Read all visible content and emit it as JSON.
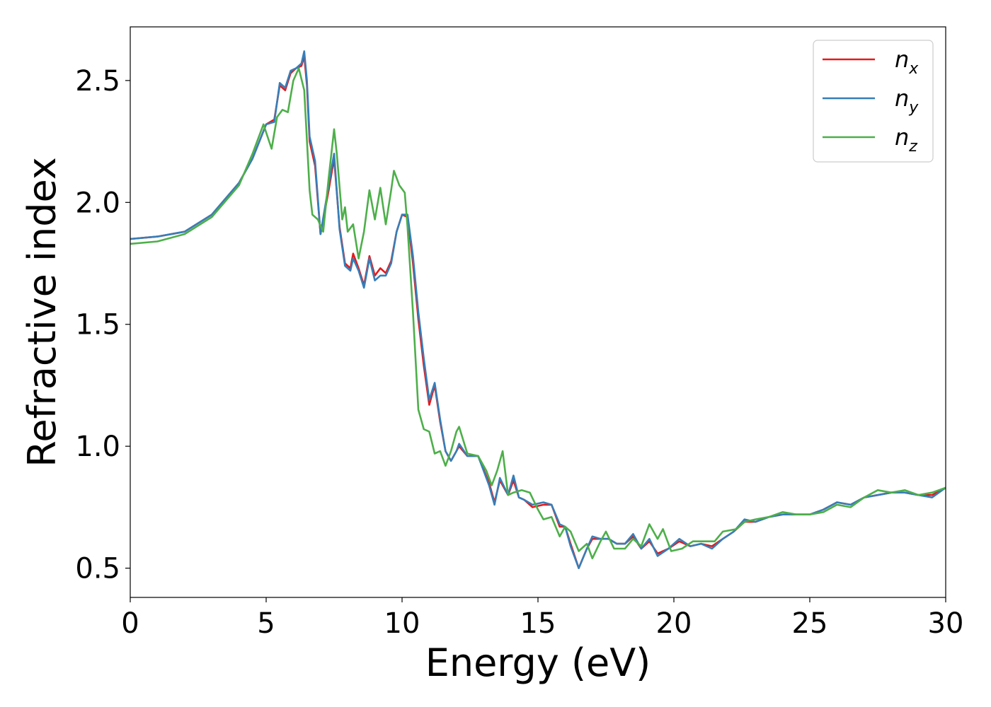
{
  "chart_data": {
    "type": "line",
    "title": "",
    "xlabel": "Energy (eV)",
    "ylabel": "Refractive index",
    "xlim": [
      0,
      30
    ],
    "ylim": [
      0.38,
      2.72
    ],
    "xticks": [
      0,
      5,
      10,
      15,
      20,
      25,
      30
    ],
    "xtick_labels": [
      "0",
      "5",
      "10",
      "15",
      "20",
      "25",
      "30"
    ],
    "yticks": [
      0.5,
      1.0,
      1.5,
      2.0,
      2.5
    ],
    "ytick_labels": [
      "0.5",
      "1.0",
      "1.5",
      "2.0",
      "2.5"
    ],
    "grid": false,
    "legend_position": "top-right",
    "series": [
      {
        "name": "n_x",
        "label_main": "n",
        "label_sub": "x",
        "color": "#e41a1c",
        "points": [
          [
            0,
            1.85
          ],
          [
            1,
            1.86
          ],
          [
            2,
            1.88
          ],
          [
            3,
            1.95
          ],
          [
            4,
            2.08
          ],
          [
            4.5,
            2.18
          ],
          [
            5,
            2.32
          ],
          [
            5.3,
            2.34
          ],
          [
            5.5,
            2.48
          ],
          [
            5.7,
            2.46
          ],
          [
            5.9,
            2.53
          ],
          [
            6.1,
            2.55
          ],
          [
            6.3,
            2.56
          ],
          [
            6.4,
            2.6
          ],
          [
            6.5,
            2.48
          ],
          [
            6.6,
            2.25
          ],
          [
            6.8,
            2.15
          ],
          [
            7.0,
            1.87
          ],
          [
            7.3,
            2.05
          ],
          [
            7.5,
            2.18
          ],
          [
            7.7,
            1.9
          ],
          [
            7.9,
            1.75
          ],
          [
            8.1,
            1.73
          ],
          [
            8.2,
            1.79
          ],
          [
            8.4,
            1.73
          ],
          [
            8.6,
            1.66
          ],
          [
            8.8,
            1.78
          ],
          [
            9.0,
            1.7
          ],
          [
            9.2,
            1.73
          ],
          [
            9.4,
            1.71
          ],
          [
            9.6,
            1.76
          ],
          [
            9.8,
            1.88
          ],
          [
            10.0,
            1.95
          ],
          [
            10.2,
            1.94
          ],
          [
            10.4,
            1.75
          ],
          [
            10.6,
            1.52
          ],
          [
            10.8,
            1.33
          ],
          [
            11.0,
            1.17
          ],
          [
            11.2,
            1.25
          ],
          [
            11.4,
            1.1
          ],
          [
            11.6,
            0.98
          ],
          [
            11.8,
            0.94
          ],
          [
            12.0,
            0.98
          ],
          [
            12.1,
            1.0
          ],
          [
            12.4,
            0.96
          ],
          [
            12.8,
            0.96
          ],
          [
            13.2,
            0.85
          ],
          [
            13.4,
            0.77
          ],
          [
            13.6,
            0.86
          ],
          [
            13.9,
            0.8
          ],
          [
            14.1,
            0.86
          ],
          [
            14.3,
            0.79
          ],
          [
            14.5,
            0.78
          ],
          [
            14.8,
            0.75
          ],
          [
            15.2,
            0.76
          ],
          [
            15.5,
            0.76
          ],
          [
            15.8,
            0.67
          ],
          [
            16.0,
            0.67
          ],
          [
            16.2,
            0.6
          ],
          [
            16.5,
            0.5
          ],
          [
            16.8,
            0.58
          ],
          [
            17.0,
            0.62
          ],
          [
            17.3,
            0.62
          ],
          [
            17.6,
            0.62
          ],
          [
            17.9,
            0.6
          ],
          [
            18.2,
            0.6
          ],
          [
            18.5,
            0.63
          ],
          [
            18.8,
            0.58
          ],
          [
            19.1,
            0.61
          ],
          [
            19.4,
            0.56
          ],
          [
            19.8,
            0.58
          ],
          [
            20.2,
            0.61
          ],
          [
            20.6,
            0.59
          ],
          [
            21.0,
            0.6
          ],
          [
            21.4,
            0.59
          ],
          [
            21.8,
            0.62
          ],
          [
            22.2,
            0.65
          ],
          [
            22.6,
            0.69
          ],
          [
            23.0,
            0.69
          ],
          [
            23.5,
            0.71
          ],
          [
            24.0,
            0.72
          ],
          [
            24.5,
            0.72
          ],
          [
            25.0,
            0.72
          ],
          [
            25.5,
            0.74
          ],
          [
            26.0,
            0.77
          ],
          [
            26.5,
            0.76
          ],
          [
            27.0,
            0.79
          ],
          [
            27.5,
            0.8
          ],
          [
            28.0,
            0.81
          ],
          [
            28.5,
            0.81
          ],
          [
            29.0,
            0.8
          ],
          [
            29.5,
            0.8
          ],
          [
            30.0,
            0.83
          ]
        ]
      },
      {
        "name": "n_y",
        "label_main": "n",
        "label_sub": "y",
        "color": "#377eb8",
        "points": [
          [
            0,
            1.85
          ],
          [
            1,
            1.86
          ],
          [
            2,
            1.88
          ],
          [
            3,
            1.95
          ],
          [
            4,
            2.08
          ],
          [
            4.5,
            2.18
          ],
          [
            5,
            2.32
          ],
          [
            5.3,
            2.33
          ],
          [
            5.5,
            2.49
          ],
          [
            5.7,
            2.47
          ],
          [
            5.9,
            2.54
          ],
          [
            6.1,
            2.55
          ],
          [
            6.3,
            2.57
          ],
          [
            6.4,
            2.62
          ],
          [
            6.5,
            2.5
          ],
          [
            6.6,
            2.27
          ],
          [
            6.8,
            2.17
          ],
          [
            7.0,
            1.87
          ],
          [
            7.3,
            2.07
          ],
          [
            7.5,
            2.2
          ],
          [
            7.7,
            1.89
          ],
          [
            7.9,
            1.74
          ],
          [
            8.1,
            1.72
          ],
          [
            8.2,
            1.77
          ],
          [
            8.4,
            1.72
          ],
          [
            8.6,
            1.65
          ],
          [
            8.8,
            1.77
          ],
          [
            9.0,
            1.68
          ],
          [
            9.2,
            1.7
          ],
          [
            9.4,
            1.7
          ],
          [
            9.6,
            1.75
          ],
          [
            9.8,
            1.88
          ],
          [
            10.0,
            1.95
          ],
          [
            10.2,
            1.95
          ],
          [
            10.4,
            1.78
          ],
          [
            10.6,
            1.55
          ],
          [
            10.8,
            1.36
          ],
          [
            11.0,
            1.19
          ],
          [
            11.2,
            1.26
          ],
          [
            11.4,
            1.11
          ],
          [
            11.6,
            0.98
          ],
          [
            11.8,
            0.94
          ],
          [
            12.0,
            0.98
          ],
          [
            12.1,
            1.01
          ],
          [
            12.4,
            0.96
          ],
          [
            12.8,
            0.96
          ],
          [
            13.2,
            0.84
          ],
          [
            13.4,
            0.76
          ],
          [
            13.6,
            0.87
          ],
          [
            13.9,
            0.8
          ],
          [
            14.1,
            0.88
          ],
          [
            14.3,
            0.79
          ],
          [
            14.5,
            0.78
          ],
          [
            14.8,
            0.76
          ],
          [
            15.2,
            0.77
          ],
          [
            15.5,
            0.76
          ],
          [
            15.8,
            0.68
          ],
          [
            16.0,
            0.67
          ],
          [
            16.2,
            0.59
          ],
          [
            16.5,
            0.5
          ],
          [
            16.8,
            0.58
          ],
          [
            17.0,
            0.63
          ],
          [
            17.3,
            0.62
          ],
          [
            17.6,
            0.62
          ],
          [
            17.9,
            0.6
          ],
          [
            18.2,
            0.6
          ],
          [
            18.5,
            0.64
          ],
          [
            18.8,
            0.58
          ],
          [
            19.1,
            0.62
          ],
          [
            19.4,
            0.55
          ],
          [
            19.8,
            0.58
          ],
          [
            20.2,
            0.62
          ],
          [
            20.6,
            0.59
          ],
          [
            21.0,
            0.6
          ],
          [
            21.4,
            0.58
          ],
          [
            21.8,
            0.62
          ],
          [
            22.2,
            0.65
          ],
          [
            22.6,
            0.7
          ],
          [
            23.0,
            0.69
          ],
          [
            23.5,
            0.71
          ],
          [
            24.0,
            0.72
          ],
          [
            24.5,
            0.72
          ],
          [
            25.0,
            0.72
          ],
          [
            25.5,
            0.74
          ],
          [
            26.0,
            0.77
          ],
          [
            26.5,
            0.76
          ],
          [
            27.0,
            0.79
          ],
          [
            27.5,
            0.8
          ],
          [
            28.0,
            0.81
          ],
          [
            28.5,
            0.81
          ],
          [
            29.0,
            0.8
          ],
          [
            29.5,
            0.79
          ],
          [
            30.0,
            0.83
          ]
        ]
      },
      {
        "name": "n_z",
        "label_main": "n",
        "label_sub": "z",
        "color": "#4daf4a",
        "points": [
          [
            0,
            1.83
          ],
          [
            1,
            1.84
          ],
          [
            2,
            1.87
          ],
          [
            3,
            1.94
          ],
          [
            4,
            2.07
          ],
          [
            4.5,
            2.2
          ],
          [
            4.9,
            2.32
          ],
          [
            5.2,
            2.22
          ],
          [
            5.4,
            2.35
          ],
          [
            5.6,
            2.38
          ],
          [
            5.8,
            2.37
          ],
          [
            6.0,
            2.5
          ],
          [
            6.2,
            2.55
          ],
          [
            6.4,
            2.46
          ],
          [
            6.6,
            2.05
          ],
          [
            6.7,
            1.95
          ],
          [
            6.9,
            1.93
          ],
          [
            7.1,
            1.88
          ],
          [
            7.3,
            2.1
          ],
          [
            7.5,
            2.3
          ],
          [
            7.6,
            2.2
          ],
          [
            7.8,
            1.93
          ],
          [
            7.9,
            1.98
          ],
          [
            8.0,
            1.88
          ],
          [
            8.2,
            1.91
          ],
          [
            8.4,
            1.77
          ],
          [
            8.6,
            1.88
          ],
          [
            8.8,
            2.05
          ],
          [
            9.0,
            1.93
          ],
          [
            9.2,
            2.06
          ],
          [
            9.4,
            1.91
          ],
          [
            9.6,
            2.05
          ],
          [
            9.7,
            2.13
          ],
          [
            9.9,
            2.07
          ],
          [
            10.1,
            2.04
          ],
          [
            10.2,
            1.9
          ],
          [
            10.4,
            1.55
          ],
          [
            10.6,
            1.15
          ],
          [
            10.8,
            1.07
          ],
          [
            11.0,
            1.06
          ],
          [
            11.2,
            0.97
          ],
          [
            11.4,
            0.98
          ],
          [
            11.6,
            0.92
          ],
          [
            11.8,
            0.98
          ],
          [
            12.0,
            1.06
          ],
          [
            12.1,
            1.08
          ],
          [
            12.4,
            0.97
          ],
          [
            12.8,
            0.96
          ],
          [
            13.1,
            0.9
          ],
          [
            13.3,
            0.84
          ],
          [
            13.5,
            0.9
          ],
          [
            13.7,
            0.98
          ],
          [
            13.9,
            0.8
          ],
          [
            14.1,
            0.81
          ],
          [
            14.4,
            0.82
          ],
          [
            14.7,
            0.81
          ],
          [
            15.0,
            0.74
          ],
          [
            15.2,
            0.7
          ],
          [
            15.5,
            0.71
          ],
          [
            15.8,
            0.63
          ],
          [
            16.0,
            0.67
          ],
          [
            16.2,
            0.65
          ],
          [
            16.5,
            0.57
          ],
          [
            16.8,
            0.6
          ],
          [
            17.0,
            0.54
          ],
          [
            17.3,
            0.61
          ],
          [
            17.5,
            0.65
          ],
          [
            17.8,
            0.58
          ],
          [
            18.2,
            0.58
          ],
          [
            18.5,
            0.62
          ],
          [
            18.8,
            0.59
          ],
          [
            19.1,
            0.68
          ],
          [
            19.4,
            0.62
          ],
          [
            19.6,
            0.66
          ],
          [
            19.9,
            0.57
          ],
          [
            20.3,
            0.58
          ],
          [
            20.7,
            0.61
          ],
          [
            21.1,
            0.61
          ],
          [
            21.5,
            0.61
          ],
          [
            21.8,
            0.65
          ],
          [
            22.3,
            0.66
          ],
          [
            22.6,
            0.69
          ],
          [
            23.0,
            0.7
          ],
          [
            23.5,
            0.71
          ],
          [
            24.0,
            0.73
          ],
          [
            24.5,
            0.72
          ],
          [
            25.0,
            0.72
          ],
          [
            25.5,
            0.73
          ],
          [
            26.0,
            0.76
          ],
          [
            26.5,
            0.75
          ],
          [
            27.0,
            0.79
          ],
          [
            27.5,
            0.82
          ],
          [
            28.0,
            0.81
          ],
          [
            28.5,
            0.82
          ],
          [
            29.0,
            0.8
          ],
          [
            29.5,
            0.81
          ],
          [
            30.0,
            0.83
          ]
        ]
      }
    ]
  }
}
